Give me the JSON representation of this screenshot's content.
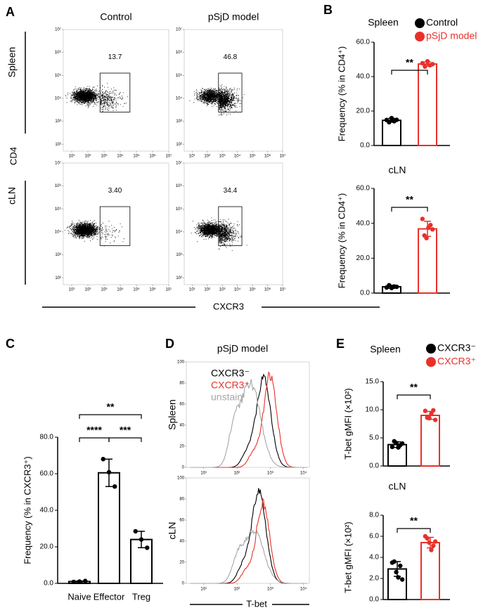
{
  "chart_data": [
    {
      "type": "flow",
      "panel": "A",
      "columns": [
        "Control",
        "pSjD model"
      ],
      "rows": [
        "Spleen",
        "cLN"
      ],
      "x_label": "CXCR3",
      "y_label": "CD4",
      "xscale": "log",
      "yscale": "log",
      "xlim": [
        3,
        10000000
      ],
      "ylim": [
        50,
        10000000
      ],
      "xticks": [
        {
          "value": 10,
          "label": "10¹"
        },
        {
          "value": 100,
          "label": "10²"
        },
        {
          "value": 1000,
          "label": "10³"
        },
        {
          "value": 10000,
          "label": "10⁴"
        },
        {
          "value": 100000,
          "label": "10⁵"
        },
        {
          "value": 1000000,
          "label": "10⁶"
        },
        {
          "value": 10000000,
          "label": "10⁷"
        }
      ],
      "yticks": [
        {
          "value": 100,
          "label": "10²"
        },
        {
          "value": 1000,
          "label": "10³"
        },
        {
          "value": 10000,
          "label": "10⁴"
        },
        {
          "value": 100000,
          "label": "10⁵"
        },
        {
          "value": 1000000,
          "label": "10⁶"
        },
        {
          "value": 10000000,
          "label": "10⁷"
        }
      ],
      "gate_values": [
        [
          13.7,
          46.8
        ],
        [
          3.4,
          34.4
        ]
      ],
      "value_labels": [
        [
          "13.7",
          "46.8"
        ],
        [
          "3.40",
          "34.4"
        ]
      ]
    },
    {
      "type": "bar",
      "panel": "B",
      "title": "Spleen",
      "y_label": "Frequency (% in CD4⁺)",
      "ylim": [
        0,
        60
      ],
      "yticks": [
        {
          "value": 0,
          "label": "0.0"
        },
        {
          "value": 20,
          "label": "20.0"
        },
        {
          "value": 40,
          "label": "40.0"
        },
        {
          "value": 60,
          "label": "60.0"
        }
      ],
      "series": [
        {
          "name": "Control",
          "color": "#000000",
          "values": [
            14.6
          ],
          "errors": [
            1.1
          ],
          "points": [
            [
              14.8,
              13.5,
              15.9,
              14.1,
              14.9
            ]
          ]
        },
        {
          "name": "pSjD model",
          "color": "#e8312a",
          "values": [
            47.3
          ],
          "errors": [
            1.2
          ],
          "points": [
            [
              47.8,
              45.8,
              48.9,
              46.6,
              47.2
            ]
          ]
        }
      ],
      "significance": [
        "**"
      ]
    },
    {
      "type": "bar",
      "title": "cLN",
      "y_label": "Frequency (% in CD4⁺)",
      "ylim": [
        0,
        60
      ],
      "yticks": [
        {
          "value": 0,
          "label": "0.0"
        },
        {
          "value": 20,
          "label": "20.0"
        },
        {
          "value": 40,
          "label": "40.0"
        },
        {
          "value": 60,
          "label": "60.0"
        }
      ],
      "series": [
        {
          "color": "#000000",
          "values": [
            3.6
          ],
          "errors": [
            0.9
          ],
          "points": [
            [
              3.2,
              4.5,
              2.9,
              3.8,
              3.6
            ]
          ]
        },
        {
          "color": "#e8312a",
          "values": [
            36.8
          ],
          "errors": [
            4.3
          ],
          "points": [
            [
              42.5,
              33.0,
              31.5,
              37.5,
              39.0,
              36.5
            ]
          ]
        }
      ],
      "significance": [
        "**"
      ]
    },
    {
      "type": "bar",
      "panel": "C",
      "y_label": "Frequency (% in CXCR3⁺)",
      "color": "#000000",
      "categories": [
        "Naive",
        "Effector",
        "Treg"
      ],
      "values": [
        1.0,
        60.5,
        24.0
      ],
      "errors": [
        0.3,
        7.5,
        4.5
      ],
      "points": [
        [
          0.8,
          1.0,
          1.3
        ],
        [
          68.0,
          60.8,
          53.0
        ],
        [
          28.5,
          24.0,
          19.5
        ]
      ],
      "ylim": [
        0,
        80
      ],
      "yticks": [
        {
          "value": 0,
          "label": "0.0"
        },
        {
          "value": 20,
          "label": "20.0"
        },
        {
          "value": 40,
          "label": "40.0"
        },
        {
          "value": 60,
          "label": "60.0"
        },
        {
          "value": 80,
          "label": "80.0"
        }
      ],
      "significance": [
        "**",
        "****",
        "***"
      ]
    },
    {
      "type": "histogram",
      "panel": "D",
      "title": "pSjD model",
      "rows": [
        "Spleen",
        "cLN"
      ],
      "x_label": "T-bet",
      "xscale": "log",
      "xlim": [
        3,
        15000
      ],
      "ylim": [
        0,
        100
      ],
      "xticks": [
        {
          "value": 10,
          "label": "10¹"
        },
        {
          "value": 100,
          "label": "10²"
        },
        {
          "value": 1000,
          "label": "10³"
        },
        {
          "value": 10000,
          "label": "10⁴"
        }
      ],
      "yticks": [
        0,
        20,
        40,
        60,
        80,
        100
      ],
      "series": [
        {
          "name": "CXCR3⁻",
          "color": "#000000"
        },
        {
          "name": "CXCR3⁺",
          "color": "#e8312a"
        },
        {
          "name": "unstain",
          "color": "#a6a6a6"
        }
      ]
    },
    {
      "type": "bar",
      "panel": "E",
      "title": "Spleen",
      "y_label": "T-bet gMFI (×10²)",
      "ylim": [
        0,
        15
      ],
      "yticks": [
        {
          "value": 0,
          "label": "0.0"
        },
        {
          "value": 5,
          "label": "5.0"
        },
        {
          "value": 10,
          "label": "10.0"
        },
        {
          "value": 15,
          "label": "15.0"
        }
      ],
      "series": [
        {
          "name": "CXCR3⁻",
          "color": "#000000",
          "values": [
            3.8
          ],
          "errors": [
            0.5
          ],
          "points": [
            [
              3.4,
              4.4,
              4.1,
              3.3,
              3.7,
              4.0
            ]
          ]
        },
        {
          "name": "CXCR3⁺",
          "color": "#e8312a",
          "values": [
            9.0
          ],
          "errors": [
            0.7
          ],
          "points": [
            [
              9.8,
              8.6,
              8.5,
              9.3,
              9.9,
              8.2
            ]
          ]
        }
      ],
      "significance": [
        "**"
      ]
    },
    {
      "type": "bar",
      "title": "cLN",
      "y_label": "T-bet gMFI (×10²)",
      "ylim": [
        0,
        8
      ],
      "yticks": [
        {
          "value": 0,
          "label": "0.0"
        },
        {
          "value": 2,
          "label": "2.0"
        },
        {
          "value": 4,
          "label": "4.0"
        },
        {
          "value": 6,
          "label": "6.0"
        },
        {
          "value": 8,
          "label": "8.0"
        }
      ],
      "series": [
        {
          "color": "#000000",
          "values": [
            2.9
          ],
          "errors": [
            0.7
          ],
          "points": [
            [
              3.5,
              3.6,
              2.6,
              2.1,
              3.2,
              1.9
            ]
          ]
        },
        {
          "color": "#e8312a",
          "values": [
            5.4
          ],
          "errors": [
            0.5
          ],
          "points": [
            [
              6.0,
              5.8,
              5.4,
              4.7,
              5.1,
              5.5
            ]
          ]
        }
      ],
      "significance": [
        "**"
      ]
    }
  ]
}
